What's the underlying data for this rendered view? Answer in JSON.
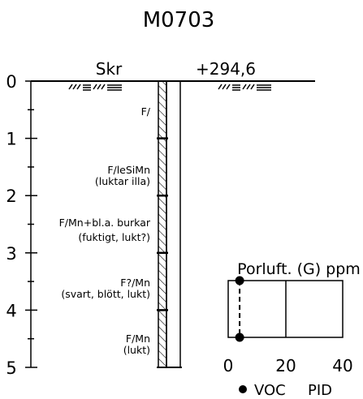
{
  "title": "M0703",
  "header": {
    "left_label": "Skr",
    "right_label": "+294,6"
  },
  "depth_axis": {
    "ticks": [
      "0",
      "1",
      "2",
      "3",
      "4",
      "5"
    ]
  },
  "layers": [
    {
      "line1": "F/",
      "line2": ""
    },
    {
      "line1": "F/leSiMn",
      "line2": "(luktar illa)"
    },
    {
      "line1": "F/Mn+bl.a. burkar",
      "line2": "(fuktigt, lukt?)"
    },
    {
      "line1": "F?/Mn",
      "line2": "(svart, blött, lukt)"
    },
    {
      "line1": "F/Mn",
      "line2": "(lukt)"
    }
  ],
  "pid_chart": {
    "title": "Porluft. (G) ppm",
    "x_ticks": [
      "0",
      "20",
      "40"
    ],
    "legend_voc": "VOC",
    "legend_pid": "PID",
    "xlim": [
      0,
      40
    ],
    "ylim": [
      3.6,
      4.5
    ],
    "voc_points": [
      {
        "x": 4,
        "depth": 3.6
      },
      {
        "x": 4,
        "depth": 4.5
      }
    ]
  },
  "colors": {
    "ink": "#000000"
  }
}
